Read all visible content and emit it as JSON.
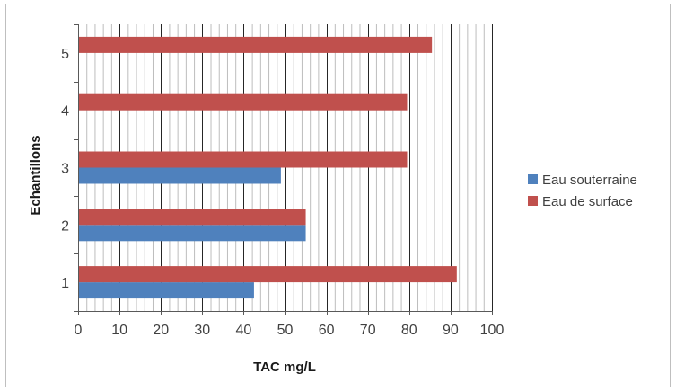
{
  "chart_data": {
    "type": "bar",
    "orientation": "horizontal",
    "categories": [
      "1",
      "2",
      "3",
      "4",
      "5"
    ],
    "series": [
      {
        "name": "Eau souterraine",
        "color": "#4f81bd",
        "values": [
          42.5,
          55,
          49,
          null,
          null
        ]
      },
      {
        "name": "Eau de surface",
        "color": "#c0504d",
        "values": [
          91.5,
          55,
          79.5,
          79.5,
          85.5
        ]
      }
    ],
    "xlabel": "TAC mg/L",
    "ylabel": "Echantillons",
    "xlim": [
      0,
      100
    ],
    "x_ticks": [
      0,
      10,
      20,
      30,
      40,
      50,
      60,
      70,
      80,
      90,
      100
    ],
    "grid": {
      "major": true,
      "minor": true
    },
    "legend_position": "right"
  }
}
